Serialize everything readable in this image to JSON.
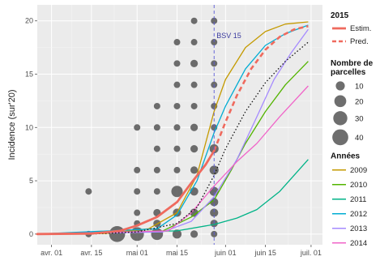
{
  "chart_data": {
    "type": "line",
    "title": "",
    "ylabel": "Incidence (sur'20)",
    "xlabel": "",
    "x_ticks": [
      "avr. 01",
      "avr. 15",
      "mai 01",
      "mai 15",
      "juin 01",
      "juin 15",
      "juil. 01"
    ],
    "y_ticks": [
      "0",
      "5",
      "10",
      "15",
      "20"
    ],
    "xlim": [
      "2015-03-27",
      "2015-07-05"
    ],
    "ylim": [
      -1,
      21.5
    ],
    "grid": true,
    "legend_position": "right",
    "annotation": {
      "label": "BSV 15",
      "x": "2015-05-28",
      "color": "#5b5bd6"
    },
    "legend_2015": {
      "title": "2015",
      "estim_label": "Estim.",
      "pred_label": "Pred.",
      "estim_color": "#ef6a5e",
      "pred_color": "#ef6a5e"
    },
    "legend_size": {
      "title_line1": "Nombre de",
      "title_line2": "parcelles",
      "items": [
        {
          "label": "10",
          "value": 10
        },
        {
          "label": "20",
          "value": 20
        },
        {
          "label": "30",
          "value": 30
        },
        {
          "label": "40",
          "value": 40
        }
      ]
    },
    "legend_years_title": "Années",
    "series_2015": {
      "estim": {
        "name": "Estim.",
        "points": [
          [
            "2015-03-27",
            0
          ],
          [
            "2015-04-15",
            0.05
          ],
          [
            "2015-04-25",
            0.3
          ],
          [
            "2015-05-01",
            0.8
          ],
          [
            "2015-05-08",
            1.6
          ],
          [
            "2015-05-15",
            3.0
          ],
          [
            "2015-05-20",
            4.8
          ],
          [
            "2015-05-25",
            6.5
          ],
          [
            "2015-05-28",
            7.8
          ]
        ]
      },
      "pred": {
        "name": "Pred.",
        "points": [
          [
            "2015-05-28",
            7.8
          ],
          [
            "2015-06-01",
            10.5
          ],
          [
            "2015-06-05",
            13.0
          ],
          [
            "2015-06-10",
            15.5
          ],
          [
            "2015-06-15",
            17.3
          ],
          [
            "2015-06-20",
            18.5
          ],
          [
            "2015-06-25",
            19.2
          ],
          [
            "2015-06-30",
            19.5
          ]
        ]
      }
    },
    "series_black_dotted": {
      "points": [
        [
          "2015-03-27",
          0
        ],
        [
          "2015-04-15",
          0
        ],
        [
          "2015-05-01",
          0.2
        ],
        [
          "2015-05-15",
          1.0
        ],
        [
          "2015-05-22",
          2.5
        ],
        [
          "2015-05-28",
          5.5
        ],
        [
          "2015-06-01",
          8.0
        ],
        [
          "2015-06-08",
          11.5
        ],
        [
          "2015-06-15",
          14.2
        ],
        [
          "2015-06-22",
          16.2
        ],
        [
          "2015-06-30",
          18.0
        ]
      ]
    },
    "series": [
      {
        "name": "2009",
        "color": "#c49a00",
        "points": [
          [
            "2015-03-27",
            0
          ],
          [
            "2015-04-20",
            0.05
          ],
          [
            "2015-05-05",
            0.5
          ],
          [
            "2015-05-15",
            2.0
          ],
          [
            "2015-05-22",
            5.5
          ],
          [
            "2015-05-28",
            11.5
          ],
          [
            "2015-06-01",
            14.5
          ],
          [
            "2015-06-08",
            17.5
          ],
          [
            "2015-06-15",
            19.0
          ],
          [
            "2015-06-22",
            19.7
          ],
          [
            "2015-06-30",
            19.9
          ]
        ]
      },
      {
        "name": "2010",
        "color": "#53b400",
        "points": [
          [
            "2015-03-27",
            0
          ],
          [
            "2015-05-10",
            0.3
          ],
          [
            "2015-05-20",
            1.6
          ],
          [
            "2015-05-28",
            3.2
          ],
          [
            "2015-06-03",
            6.0
          ],
          [
            "2015-06-08",
            8.5
          ],
          [
            "2015-06-15",
            11.5
          ],
          [
            "2015-06-22",
            14.0
          ],
          [
            "2015-06-30",
            16.2
          ]
        ]
      },
      {
        "name": "2011",
        "color": "#00b387",
        "points": [
          [
            "2015-03-27",
            0
          ],
          [
            "2015-05-15",
            0.3
          ],
          [
            "2015-05-28",
            0.9
          ],
          [
            "2015-06-05",
            1.5
          ],
          [
            "2015-06-12",
            2.3
          ],
          [
            "2015-06-20",
            4.0
          ],
          [
            "2015-06-30",
            7.0
          ]
        ]
      },
      {
        "name": "2012",
        "color": "#00acd3",
        "points": [
          [
            "2015-03-27",
            0
          ],
          [
            "2015-05-08",
            0.5
          ],
          [
            "2015-05-15",
            1.8
          ],
          [
            "2015-05-22",
            5.0
          ],
          [
            "2015-05-28",
            9.5
          ],
          [
            "2015-06-01",
            12.0
          ],
          [
            "2015-06-08",
            15.5
          ],
          [
            "2015-06-15",
            17.7
          ],
          [
            "2015-06-22",
            18.8
          ],
          [
            "2015-06-30",
            19.6
          ]
        ]
      },
      {
        "name": "2013",
        "color": "#a58aff",
        "points": [
          [
            "2015-03-27",
            0
          ],
          [
            "2015-05-10",
            0.2
          ],
          [
            "2015-05-20",
            1.2
          ],
          [
            "2015-05-28",
            3.5
          ],
          [
            "2015-06-05",
            7.0
          ],
          [
            "2015-06-12",
            11.0
          ],
          [
            "2015-06-18",
            14.5
          ],
          [
            "2015-06-24",
            17.0
          ],
          [
            "2015-06-30",
            19.2
          ]
        ]
      },
      {
        "name": "2014",
        "color": "#f064c8",
        "points": [
          [
            "2015-03-27",
            0
          ],
          [
            "2015-05-12",
            0.3
          ],
          [
            "2015-05-20",
            2.0
          ],
          [
            "2015-05-28",
            4.5
          ],
          [
            "2015-06-05",
            6.8
          ],
          [
            "2015-06-12",
            8.5
          ],
          [
            "2015-06-20",
            11.0
          ],
          [
            "2015-06-30",
            13.9
          ]
        ]
      }
    ],
    "points": [
      {
        "x": "2015-04-14",
        "y": 4,
        "n": 4
      },
      {
        "x": "2015-04-14",
        "y": 0,
        "n": 4
      },
      {
        "x": "2015-04-24",
        "y": 0,
        "n": 40
      },
      {
        "x": "2015-05-01",
        "y": 10,
        "n": 4
      },
      {
        "x": "2015-05-01",
        "y": 6,
        "n": 4
      },
      {
        "x": "2015-05-01",
        "y": 4,
        "n": 4
      },
      {
        "x": "2015-05-01",
        "y": 2,
        "n": 4
      },
      {
        "x": "2015-05-01",
        "y": 1,
        "n": 4
      },
      {
        "x": "2015-05-01",
        "y": 0,
        "n": 28
      },
      {
        "x": "2015-05-08",
        "y": 12,
        "n": 4
      },
      {
        "x": "2015-05-08",
        "y": 10,
        "n": 4
      },
      {
        "x": "2015-05-08",
        "y": 8,
        "n": 4
      },
      {
        "x": "2015-05-08",
        "y": 6,
        "n": 4
      },
      {
        "x": "2015-05-08",
        "y": 4,
        "n": 4
      },
      {
        "x": "2015-05-08",
        "y": 2,
        "n": 6
      },
      {
        "x": "2015-05-08",
        "y": 1,
        "n": 6
      },
      {
        "x": "2015-05-08",
        "y": 0,
        "n": 20
      },
      {
        "x": "2015-05-15",
        "y": 18,
        "n": 4
      },
      {
        "x": "2015-05-15",
        "y": 16,
        "n": 4
      },
      {
        "x": "2015-05-15",
        "y": 14,
        "n": 4
      },
      {
        "x": "2015-05-15",
        "y": 12,
        "n": 4
      },
      {
        "x": "2015-05-15",
        "y": 10,
        "n": 4
      },
      {
        "x": "2015-05-15",
        "y": 8,
        "n": 4
      },
      {
        "x": "2015-05-15",
        "y": 6,
        "n": 4
      },
      {
        "x": "2015-05-15",
        "y": 4,
        "n": 18
      },
      {
        "x": "2015-05-15",
        "y": 2,
        "n": 8
      },
      {
        "x": "2015-05-15",
        "y": 0,
        "n": 10
      },
      {
        "x": "2015-05-21",
        "y": 20,
        "n": 4
      },
      {
        "x": "2015-05-21",
        "y": 18,
        "n": 4
      },
      {
        "x": "2015-05-21",
        "y": 16,
        "n": 6
      },
      {
        "x": "2015-05-21",
        "y": 14,
        "n": 4
      },
      {
        "x": "2015-05-21",
        "y": 12,
        "n": 4
      },
      {
        "x": "2015-05-21",
        "y": 10,
        "n": 6
      },
      {
        "x": "2015-05-21",
        "y": 8,
        "n": 6
      },
      {
        "x": "2015-05-21",
        "y": 6,
        "n": 6
      },
      {
        "x": "2015-05-21",
        "y": 4,
        "n": 8
      },
      {
        "x": "2015-05-21",
        "y": 2,
        "n": 8
      },
      {
        "x": "2015-05-21",
        "y": 0,
        "n": 6
      },
      {
        "x": "2015-05-28",
        "y": 20,
        "n": 4
      },
      {
        "x": "2015-05-28",
        "y": 18,
        "n": 4
      },
      {
        "x": "2015-05-28",
        "y": 16,
        "n": 4
      },
      {
        "x": "2015-05-28",
        "y": 14,
        "n": 4
      },
      {
        "x": "2015-05-28",
        "y": 12,
        "n": 4
      },
      {
        "x": "2015-05-28",
        "y": 10,
        "n": 4
      },
      {
        "x": "2015-05-28",
        "y": 8,
        "n": 10
      },
      {
        "x": "2015-05-28",
        "y": 6,
        "n": 10
      },
      {
        "x": "2015-05-28",
        "y": 4,
        "n": 10
      },
      {
        "x": "2015-05-28",
        "y": 3,
        "n": 8
      },
      {
        "x": "2015-05-28",
        "y": 2,
        "n": 8
      },
      {
        "x": "2015-05-28",
        "y": 1,
        "n": 6
      },
      {
        "x": "2015-05-28",
        "y": 0,
        "n": 4
      }
    ],
    "panel_bg": "#ebebeb",
    "point_color": "#555555"
  }
}
